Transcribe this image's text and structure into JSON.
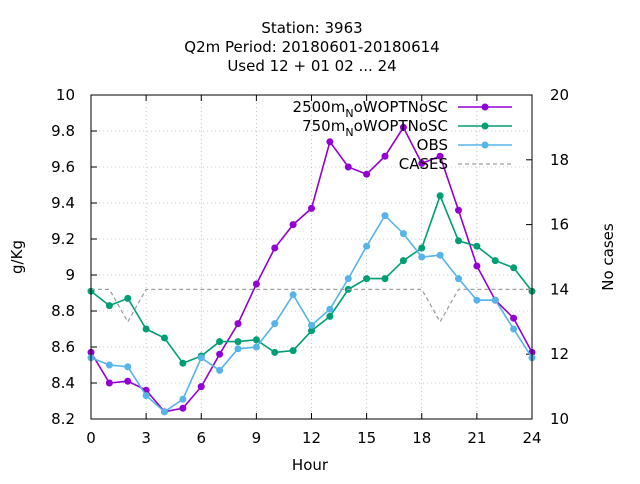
{
  "chart_data": {
    "type": "line",
    "title_lines": [
      "Station:      3963",
      "Q2m   Period: 20180601-20180614",
      "Used  12 + 01 02 ... 24"
    ],
    "xlabel": "Hour",
    "ylabel": "g/Kg",
    "y2label": "No cases",
    "xlim": [
      0,
      24
    ],
    "ylim": [
      8.2,
      10
    ],
    "y2lim": [
      10,
      20
    ],
    "x_ticks": [
      0,
      3,
      6,
      9,
      12,
      15,
      18,
      21,
      24
    ],
    "y_ticks": [
      8.2,
      8.4,
      8.6,
      8.8,
      9,
      9.2,
      9.4,
      9.6,
      9.8,
      10
    ],
    "y_tick_labels": [
      "8.2",
      "8.4",
      "8.6",
      "8.8",
      "9",
      "9.2",
      "9.4",
      "9.6",
      "9.8",
      "10"
    ],
    "y2_ticks": [
      10,
      12,
      14,
      16,
      18,
      20
    ],
    "grid": true,
    "legend_position": "top-right",
    "x": [
      0,
      1,
      2,
      3,
      4,
      5,
      6,
      7,
      8,
      9,
      10,
      11,
      12,
      13,
      14,
      15,
      16,
      17,
      18,
      19,
      20,
      21,
      22,
      23,
      24
    ],
    "series": [
      {
        "legend_label": {
          "main": "2500m",
          "sub": "N",
          "rest": "oWOPTNoSC"
        },
        "color": "#9400d3",
        "marker": "filled-circle",
        "axis": "y",
        "values": [
          8.57,
          8.4,
          8.41,
          8.36,
          8.24,
          8.26,
          8.38,
          8.56,
          8.73,
          8.95,
          9.15,
          9.28,
          9.37,
          9.74,
          9.6,
          9.56,
          9.66,
          9.82,
          9.62,
          9.66,
          9.36,
          9.05,
          8.86,
          8.76,
          8.57
        ]
      },
      {
        "legend_label": {
          "main": "750m",
          "sub": "N",
          "rest": "oWOPTNoSC"
        },
        "color": "#009e73",
        "marker": "filled-circle",
        "axis": "y",
        "values": [
          8.91,
          8.83,
          8.87,
          8.7,
          8.65,
          8.51,
          8.55,
          8.63,
          8.63,
          8.64,
          8.57,
          8.58,
          8.69,
          8.77,
          8.92,
          8.98,
          8.98,
          9.08,
          9.15,
          9.44,
          9.19,
          9.16,
          9.08,
          9.04,
          8.91
        ]
      },
      {
        "legend_label": {
          "main": "OBS",
          "sub": "",
          "rest": ""
        },
        "color": "#56b4e9",
        "marker": "filled-circle",
        "axis": "y",
        "values": [
          8.54,
          8.5,
          8.49,
          8.33,
          8.24,
          8.31,
          8.54,
          8.47,
          8.59,
          8.6,
          8.73,
          8.89,
          8.72,
          8.81,
          8.98,
          9.16,
          9.33,
          9.23,
          9.1,
          9.11,
          8.98,
          8.86,
          8.86,
          8.7,
          8.54
        ]
      },
      {
        "legend_label": {
          "main": "CASES",
          "sub": "",
          "rest": ""
        },
        "color": "#a0a0a0",
        "marker": "none",
        "dashed": true,
        "axis": "y2",
        "values": [
          14,
          14,
          13,
          14,
          14,
          14,
          14,
          14,
          14,
          14,
          14,
          14,
          14,
          14,
          14,
          14,
          14,
          14,
          14,
          13,
          14,
          14,
          14,
          14,
          14
        ]
      }
    ]
  }
}
